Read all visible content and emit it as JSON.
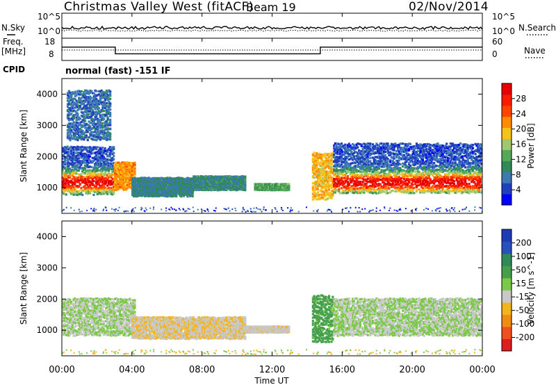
{
  "header": {
    "title": "Christmas Valley West (fitACF)",
    "beam": "Beam 19",
    "date": "02/Nov/2014"
  },
  "side_labels": {
    "nsky": "N.Sky",
    "nsearch": "N.Search",
    "freq": "Freq.",
    "freq_unit": "[MHz]",
    "nave": "Nave",
    "cpid": "CPID",
    "cpid_value": "normal (fast) -151 IF"
  },
  "noise_axis_ticks": [
    "10^5",
    "10^0"
  ],
  "freq_axis_left_ticks": [
    "18",
    "8"
  ],
  "freq_axis_right_ticks": [
    "60",
    "0"
  ],
  "range_axis": {
    "label": "Slant Range [km]",
    "ticks": [
      "4000",
      "3000",
      "2000",
      "1000"
    ],
    "values": [
      4000,
      3000,
      2000,
      1000
    ],
    "range_km": [
      180,
      4500
    ]
  },
  "time_axis": {
    "label": "Time UT",
    "ticks": [
      "00:00",
      "04:00",
      "08:00",
      "12:00",
      "16:00",
      "20:00",
      "00:00"
    ],
    "range_hours": [
      0,
      24
    ]
  },
  "power_colorbar": {
    "label": "Power [dB]",
    "ticks": [
      "28",
      "24",
      "20",
      "16",
      "12",
      "8",
      "4"
    ],
    "colors": [
      "#0000ff",
      "#1f3fbf",
      "#3c78b4",
      "#2e8b57",
      "#55a85a",
      "#a0c86a",
      "#f7c11a",
      "#ff8c00",
      "#ff4500",
      "#ff1a00",
      "#e60000"
    ]
  },
  "velocity_colorbar": {
    "label": "Velocity [m s^-1]",
    "ticks": [
      "200",
      "100",
      "50",
      "15",
      "-15",
      "-50",
      "-100",
      "-200"
    ],
    "colors": [
      "#1e3cb4",
      "#2850be",
      "#2e8b57",
      "#44a04a",
      "#7cc94a",
      "#c8c8c8",
      "#f4b41e",
      "#f08c14",
      "#f0501e",
      "#dc1e1e"
    ]
  },
  "chart_data": [
    {
      "type": "heatmap",
      "title": "Power",
      "xlabel": "Time UT",
      "ylabel": "Slant Range [km]",
      "x_range": [
        0,
        24
      ],
      "y_range": [
        180,
        4500
      ],
      "color_scale": {
        "min": 0,
        "max": 32,
        "unit": "dB"
      },
      "features": [
        {
          "start_h": 0.0,
          "end_h": 3.0,
          "range_km": [
            750,
            2300
          ],
          "peak_km": 1150,
          "power_db": 28
        },
        {
          "start_h": 0.3,
          "end_h": 2.8,
          "range_km": [
            2500,
            4100
          ],
          "power_db": 6
        },
        {
          "start_h": 3.0,
          "end_h": 4.2,
          "range_km": [
            900,
            1800
          ],
          "power_db": 22
        },
        {
          "start_h": 4.0,
          "end_h": 7.5,
          "range_km": [
            700,
            1300
          ],
          "power_db": 8
        },
        {
          "start_h": 7.5,
          "end_h": 10.5,
          "range_km": [
            900,
            1350
          ],
          "power_db": 9
        },
        {
          "start_h": 11.0,
          "end_h": 13.0,
          "range_km": [
            900,
            1100
          ],
          "power_db": 12
        },
        {
          "start_h": 14.3,
          "end_h": 15.5,
          "range_km": [
            600,
            2100
          ],
          "power_db": 20
        },
        {
          "start_h": 15.5,
          "end_h": 24.0,
          "range_km": [
            800,
            2400
          ],
          "peak_km": 1150,
          "power_db": 28
        }
      ]
    },
    {
      "type": "heatmap",
      "title": "Velocity",
      "xlabel": "Time UT",
      "ylabel": "Slant Range [km]",
      "x_range": [
        0,
        24
      ],
      "y_range": [
        180,
        4500
      ],
      "color_scale": {
        "min": -200,
        "max": 200,
        "unit": "m s^-1"
      },
      "features": [
        {
          "start_h": 0.0,
          "end_h": 4.2,
          "range_km": [
            800,
            2000
          ],
          "velocity": 0
        },
        {
          "start_h": 4.0,
          "end_h": 10.5,
          "range_km": [
            700,
            1400
          ],
          "velocity": -40
        },
        {
          "start_h": 10.5,
          "end_h": 13.0,
          "range_km": [
            900,
            1100
          ],
          "velocity": -30
        },
        {
          "start_h": 14.3,
          "end_h": 15.5,
          "range_km": [
            600,
            2100
          ],
          "velocity": 60
        },
        {
          "start_h": 15.5,
          "end_h": 24.0,
          "range_km": [
            800,
            2000
          ],
          "velocity": 0
        }
      ]
    }
  ]
}
